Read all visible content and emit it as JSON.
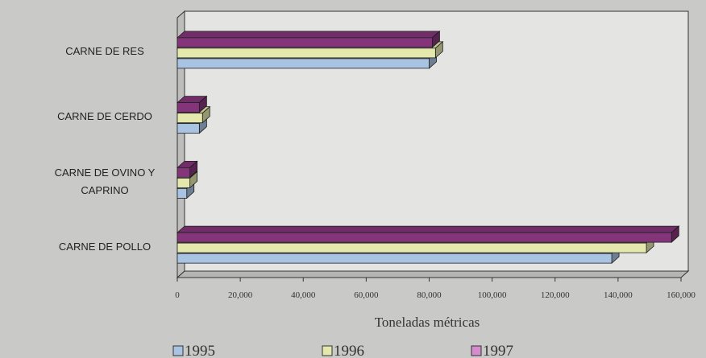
{
  "chart_data": {
    "type": "bar3d_horizontal",
    "categories": [
      "CARNE DE RES",
      "CARNE DE CERDO",
      "CARNE DE OVINO Y CAPRINO",
      "CARNE DE POLLO"
    ],
    "series": [
      {
        "name": "1995",
        "color": "#a9c3e3",
        "values": [
          80000,
          7000,
          3000,
          138000
        ]
      },
      {
        "name": "1996",
        "color": "#e4e8ad",
        "values": [
          82000,
          8000,
          4000,
          149000
        ]
      },
      {
        "name": "1997",
        "color": "#84357a",
        "values": [
          81000,
          7000,
          4000,
          157000
        ]
      }
    ],
    "xlabel": "Toneladas métricas",
    "xlim": [
      0,
      160000
    ],
    "xticks": [
      0,
      {
        "value": 20000,
        "label": "20,000"
      },
      {
        "value": 40000,
        "label": "40,000"
      },
      {
        "value": 60000,
        "label": "60,000"
      },
      {
        "value": 80000,
        "label": "80,000"
      },
      {
        "value": 100000,
        "label": "100,000"
      },
      {
        "value": 120000,
        "label": "120,000"
      },
      {
        "value": 140000,
        "label": "140,000"
      },
      {
        "value": 160000,
        "label": "160,000"
      }
    ],
    "legend": "bottom"
  }
}
